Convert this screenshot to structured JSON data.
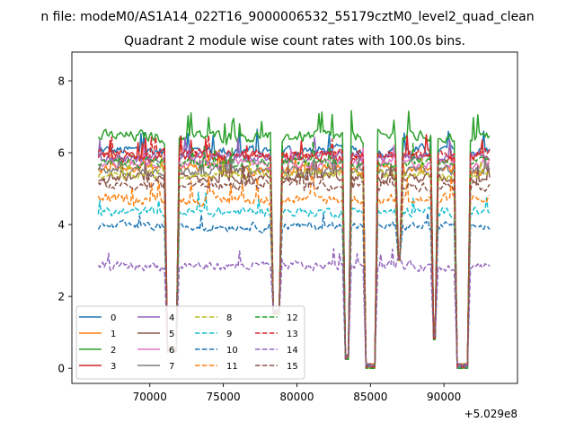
{
  "chart_data": {
    "type": "line",
    "suptitle": "n file: modeM0/AS1A14_022T16_9000006532_55179cztM0_level2_quad_clean",
    "title": "Quadrant 2 module wise count rates with 100.0s bins.",
    "xlabel": "",
    "ylabel": "",
    "x_offset_label": "+5.029e8",
    "xlim": [
      64700,
      95000
    ],
    "ylim": [
      -0.42,
      8.8
    ],
    "x_ticks": [
      70000,
      75000,
      80000,
      85000,
      90000
    ],
    "x_tick_labels": [
      "70000",
      "75000",
      "80000",
      "85000",
      "90000"
    ],
    "y_ticks": [
      0,
      2,
      4,
      6,
      8
    ],
    "y_tick_labels": [
      "0",
      "2",
      "4",
      "6",
      "8"
    ],
    "x_start": 66500,
    "x_end": 93100,
    "bin_width": 100,
    "gaps": [
      {
        "start": 71200,
        "end": 71800,
        "min": 0.45
      },
      {
        "start": 78400,
        "end": 78800,
        "min": 1.5
      },
      {
        "start": 83300,
        "end": 83500,
        "min": 0.25
      },
      {
        "start": 84700,
        "end": 85300,
        "min": 0.0
      },
      {
        "start": 86850,
        "end": 87050,
        "min": 3.0
      },
      {
        "start": 89250,
        "end": 89400,
        "min": 0.8
      },
      {
        "start": 90900,
        "end": 91600,
        "min": 0.0
      }
    ],
    "legend_position": "lower-left",
    "legend_ncol": 4,
    "series": [
      {
        "name": "0",
        "color": "#1f77b4",
        "style": "solid",
        "level": 6.05,
        "noise": 0.28
      },
      {
        "name": "1",
        "color": "#ff7f0e",
        "style": "solid",
        "level": 5.55,
        "noise": 0.22
      },
      {
        "name": "2",
        "color": "#2ca02c",
        "style": "solid",
        "level": 6.45,
        "noise": 0.3
      },
      {
        "name": "3",
        "color": "#d62728",
        "style": "solid",
        "level": 5.9,
        "noise": 0.26
      },
      {
        "name": "4",
        "color": "#9467bd",
        "style": "solid",
        "level": 5.85,
        "noise": 0.25
      },
      {
        "name": "5",
        "color": "#8c564b",
        "style": "solid",
        "level": 5.3,
        "noise": 0.24
      },
      {
        "name": "6",
        "color": "#e377c2",
        "style": "solid",
        "level": 5.7,
        "noise": 0.24
      },
      {
        "name": "7",
        "color": "#7f7f7f",
        "style": "solid",
        "level": 5.5,
        "noise": 0.22
      },
      {
        "name": "8",
        "color": "#bcbd22",
        "style": "dashed",
        "level": 5.4,
        "noise": 0.22
      },
      {
        "name": "9",
        "color": "#17becf",
        "style": "dashed",
        "level": 4.35,
        "noise": 0.24
      },
      {
        "name": "10",
        "color": "#1f77b4",
        "style": "dashed",
        "level": 3.95,
        "noise": 0.22
      },
      {
        "name": "11",
        "color": "#ff7f0e",
        "style": "dashed",
        "level": 4.7,
        "noise": 0.26
      },
      {
        "name": "12",
        "color": "#2ca02c",
        "style": "dashed",
        "level": 5.75,
        "noise": 0.24
      },
      {
        "name": "13",
        "color": "#d62728",
        "style": "dashed",
        "level": 5.95,
        "noise": 0.24
      },
      {
        "name": "14",
        "color": "#9467bd",
        "style": "dashed",
        "level": 2.85,
        "noise": 0.22
      },
      {
        "name": "15",
        "color": "#8c564b",
        "style": "dashed",
        "level": 5.1,
        "noise": 0.24
      }
    ]
  }
}
